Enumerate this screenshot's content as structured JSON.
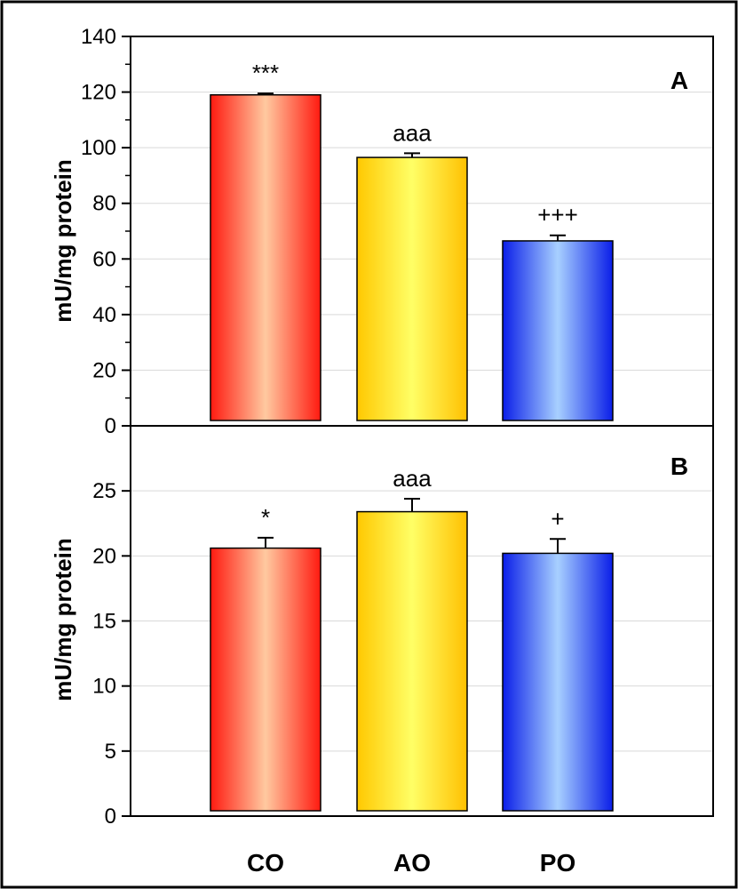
{
  "chart_data": [
    {
      "type": "bar",
      "panel_label": "A",
      "categories": [
        "CO",
        "AO",
        "PO"
      ],
      "values": [
        119,
        96.5,
        66.5
      ],
      "errors": [
        0.5,
        1.5,
        2
      ],
      "annotations": [
        "***",
        "aaa",
        "+++"
      ],
      "ylabel": "mU/mg protein",
      "ylim": [
        0,
        140
      ],
      "yticks": [
        0,
        20,
        40,
        60,
        80,
        100,
        120,
        140
      ],
      "grid": true,
      "colors": [
        "#ff2a1a",
        "#ffd21e",
        "#1a3cff"
      ]
    },
    {
      "type": "bar",
      "panel_label": "B",
      "categories": [
        "CO",
        "AO",
        "PO"
      ],
      "values": [
        20.6,
        23.4,
        20.2
      ],
      "errors": [
        0.8,
        1.0,
        1.1
      ],
      "annotations": [
        "*",
        "aaa",
        "+"
      ],
      "ylabel": "mU/mg protein",
      "ylim": [
        0,
        30
      ],
      "yticks": [
        0,
        5,
        10,
        15,
        20,
        25
      ],
      "grid": true,
      "colors": [
        "#ff2a1a",
        "#ffd21e",
        "#1a3cff"
      ]
    }
  ],
  "category_labels": [
    "CO",
    "AO",
    "PO"
  ]
}
